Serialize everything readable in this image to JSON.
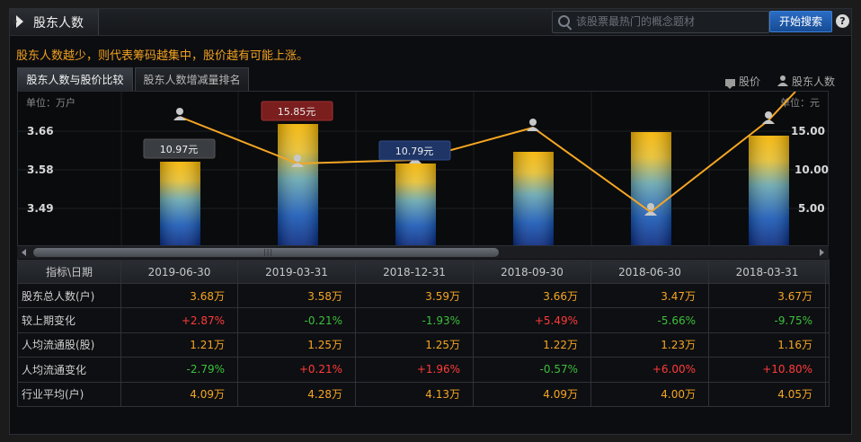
{
  "header": {
    "title": "股东人数",
    "search_placeholder": "该股票最热门的概念题材",
    "search_button": "开始搜索",
    "help": "?"
  },
  "notice": "股东人数越少，则代表筹码越集中，股价越有可能上涨。",
  "tabs": [
    {
      "label": "股东人数与股价比较",
      "active": true
    },
    {
      "label": "股东人数增减量排名",
      "active": false
    }
  ],
  "legend": {
    "price": "股价",
    "holders": "股东人数"
  },
  "chart_data": {
    "type": "bar",
    "left_axis_unit": "单位：万户",
    "right_axis_unit": "单位：元",
    "left_ticks": [
      "3.66",
      "3.58",
      "3.49"
    ],
    "right_ticks": [
      "15.00",
      "10.00",
      "5.00"
    ],
    "bar_series_name": "股东人数",
    "line_series_name": "股价",
    "price_labels": [
      {
        "index": 0,
        "text": "10.97元",
        "color": "#3a3d42"
      },
      {
        "index": 1,
        "text": "15.85元",
        "color": "#7a1e1e"
      },
      {
        "index": 2,
        "text": "10.79元",
        "color": "#1e3566"
      }
    ],
    "colors": {
      "line": "#f5a623",
      "bar_top": "#f5b000",
      "bar_mid": "#7fc84a",
      "bar_bottom": "#0a3c9a"
    }
  },
  "table": {
    "header_first": "指标\\日期",
    "dates": [
      "2019-06-30",
      "2019-03-31",
      "2018-12-31",
      "2018-09-30",
      "2018-06-30",
      "2018-03-31"
    ],
    "rows": [
      {
        "label": "股东总人数(户)",
        "values": [
          "3.68万",
          "3.58万",
          "3.59万",
          "3.66万",
          "3.47万",
          "3.67万"
        ],
        "colors": [
          "orange",
          "orange",
          "orange",
          "orange",
          "orange",
          "orange"
        ]
      },
      {
        "label": "较上期变化",
        "values": [
          "+2.87%",
          "-0.21%",
          "-1.93%",
          "+5.49%",
          "-5.66%",
          "-9.75%"
        ],
        "colors": [
          "red",
          "green",
          "green",
          "red",
          "green",
          "green"
        ]
      },
      {
        "label": "人均流通股(股)",
        "values": [
          "1.21万",
          "1.25万",
          "1.25万",
          "1.22万",
          "1.23万",
          "1.16万"
        ],
        "colors": [
          "orange",
          "orange",
          "orange",
          "orange",
          "orange",
          "orange"
        ]
      },
      {
        "label": "人均流通变化",
        "values": [
          "-2.79%",
          "+0.21%",
          "+1.96%",
          "-0.57%",
          "+6.00%",
          "+10.80%"
        ],
        "colors": [
          "green",
          "red",
          "red",
          "green",
          "red",
          "red"
        ]
      },
      {
        "label": "行业平均(户)",
        "values": [
          "4.09万",
          "4.28万",
          "4.13万",
          "4.09万",
          "4.00万",
          "4.05万"
        ],
        "colors": [
          "orange",
          "orange",
          "orange",
          "orange",
          "orange",
          "orange"
        ]
      }
    ]
  }
}
